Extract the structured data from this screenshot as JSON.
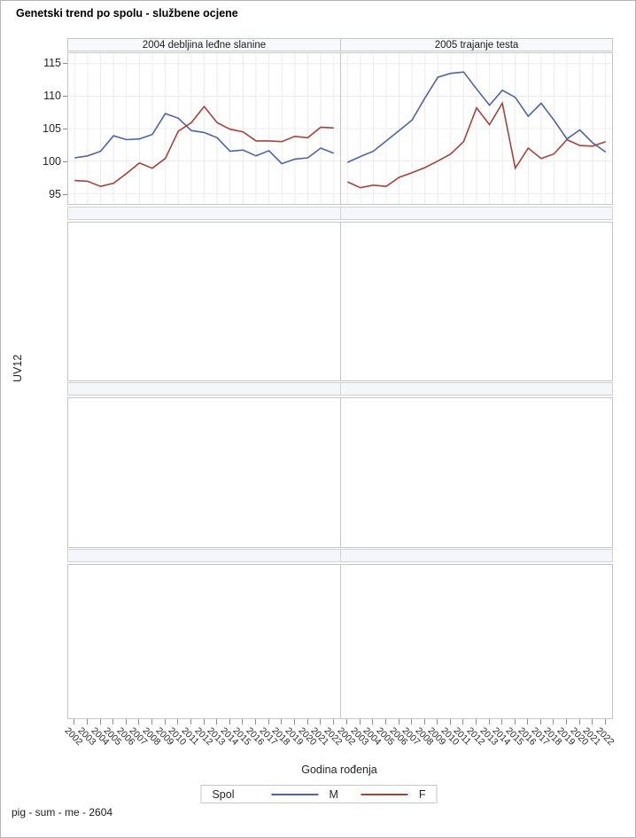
{
  "page": {
    "title": "Genetski trend po spolu - službene ocjene",
    "footer": "pig - sum - me - 2604"
  },
  "chart_data": {
    "type": "line",
    "title": "Genetski trend po spolu - službene ocjene",
    "xlabel": "Godina rođenja",
    "ylabel": "UV12",
    "grid": true,
    "x": [
      2002,
      2003,
      2004,
      2005,
      2006,
      2007,
      2008,
      2009,
      2010,
      2011,
      2012,
      2013,
      2014,
      2015,
      2016,
      2017,
      2018,
      2019,
      2020,
      2021,
      2022
    ],
    "yticks": [
      95,
      100,
      105,
      110,
      115
    ],
    "ylim": [
      93.4,
      116.6
    ],
    "legend": {
      "title": "Spol",
      "position": "bottom",
      "entries": [
        {
          "label": "M",
          "color": "#4f63a6"
        },
        {
          "label": "F",
          "color": "#a5423a"
        }
      ]
    },
    "panels": [
      {
        "header": "2004 debljina leđne slanine",
        "series": [
          {
            "name": "M",
            "color": "#4f63a6",
            "values": [
              100.5,
              100.8,
              101.5,
              103.9,
              103.3,
              103.4,
              104.1,
              107.3,
              106.6,
              104.7,
              104.4,
              103.6,
              101.5,
              101.7,
              100.8,
              101.6,
              99.6,
              100.3,
              100.5,
              102.0,
              101.2
            ]
          },
          {
            "name": "F",
            "color": "#a5423a",
            "values": [
              97.0,
              96.9,
              96.1,
              96.6,
              98.1,
              99.7,
              98.9,
              100.4,
              104.6,
              105.9,
              108.4,
              105.9,
              104.9,
              104.5,
              103.1,
              103.1,
              103.0,
              103.8,
              103.6,
              105.2,
              105.1
            ]
          }
        ]
      },
      {
        "header": "2005 trajanje testa",
        "series": [
          {
            "name": "M",
            "color": "#4f63a6",
            "values": [
              99.8,
              100.7,
              101.5,
              103.1,
              104.7,
              106.3,
              109.7,
              112.9,
              113.5,
              113.7,
              111.1,
              108.6,
              110.9,
              109.8,
              106.9,
              108.9,
              106.3,
              103.4,
              104.8,
              102.8,
              101.4
            ]
          },
          {
            "name": "F",
            "color": "#a5423a",
            "values": [
              96.8,
              95.9,
              96.3,
              96.1,
              97.5,
              98.2,
              99.0,
              100.0,
              101.1,
              103.0,
              108.2,
              105.6,
              108.9,
              98.9,
              102.0,
              100.4,
              101.1,
              103.3,
              102.4,
              102.3,
              103.0
            ]
          }
        ]
      }
    ],
    "empty_rows": 3
  }
}
